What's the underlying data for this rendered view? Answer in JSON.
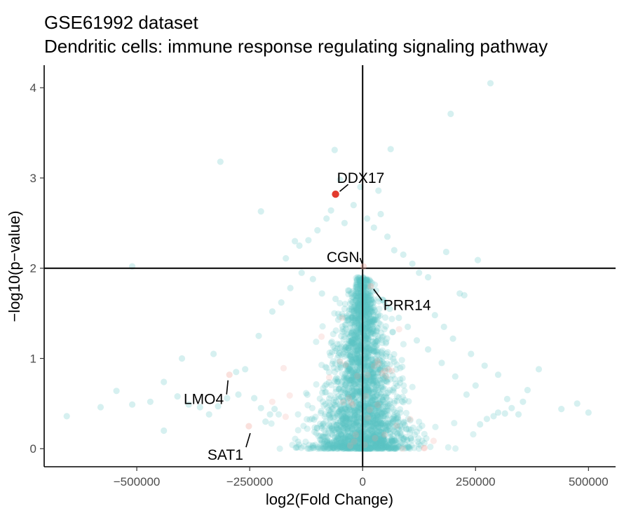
{
  "chart_data": {
    "type": "scatter",
    "title": "GSE61992 dataset",
    "subtitle": "Dendritic cells: immune response regulating signaling pathway",
    "xlabel": "log2(Fold Change)",
    "ylabel": "−log10(p−value)",
    "xlim": [
      -705000,
      560000
    ],
    "ylim": [
      -0.2,
      4.25
    ],
    "x_ticks": [
      -500000,
      -250000,
      0,
      250000,
      500000
    ],
    "x_tick_labels": [
      "−500000",
      "−250000",
      "0",
      "250000",
      "500000"
    ],
    "y_ticks": [
      0,
      1,
      2,
      3,
      4
    ],
    "y_tick_labels": [
      "0",
      "1",
      "2",
      "3",
      "4"
    ],
    "reference_lines": {
      "vertical_x": 0,
      "horizontal_y": 2
    },
    "grid": false,
    "colors": {
      "background_points": "#5bc4c4",
      "highlight": "#e23b2e",
      "faint_red": "#f2a69a",
      "axis": "#000000"
    },
    "highlighted_points": [
      {
        "label": "DDX17",
        "x": -60000,
        "y": 2.82
      },
      {
        "label": "CGN",
        "x": 2000,
        "y": 2.02
      },
      {
        "label": "PRR14",
        "x": 18000,
        "y": 1.8
      },
      {
        "label": "LMO4",
        "x": -295000,
        "y": 0.82
      },
      {
        "label": "SAT1",
        "x": -252000,
        "y": 0.25
      }
    ],
    "points": [
      [
        283000,
        4.05
      ],
      [
        195000,
        3.71
      ],
      [
        -315000,
        3.18
      ],
      [
        -62000,
        3.31
      ],
      [
        62000,
        3.32
      ],
      [
        -225000,
        2.63
      ],
      [
        -50000,
        2.98
      ],
      [
        35000,
        2.86
      ],
      [
        185000,
        2.18
      ],
      [
        255000,
        2.09
      ],
      [
        -510000,
        2.02
      ],
      [
        -170000,
        2.11
      ],
      [
        -150000,
        2.3
      ],
      [
        -140000,
        2.25
      ],
      [
        -120000,
        2.31
      ],
      [
        -100000,
        2.42
      ],
      [
        -80000,
        2.55
      ],
      [
        -70000,
        2.64
      ],
      [
        -40000,
        2.5
      ],
      [
        -20000,
        2.7
      ],
      [
        -5000,
        2.9
      ],
      [
        10000,
        2.55
      ],
      [
        25000,
        2.45
      ],
      [
        40000,
        2.6
      ],
      [
        55000,
        2.35
      ],
      [
        70000,
        2.2
      ],
      [
        90000,
        2.15
      ],
      [
        110000,
        2.05
      ],
      [
        125000,
        1.95
      ],
      [
        145000,
        1.9
      ],
      [
        215000,
        1.72
      ],
      [
        225000,
        1.7
      ],
      [
        -400000,
        1.0
      ],
      [
        -330000,
        1.05
      ],
      [
        -260000,
        0.88
      ],
      [
        -280000,
        0.85
      ],
      [
        -230000,
        1.25
      ],
      [
        -200000,
        1.52
      ],
      [
        -180000,
        1.62
      ],
      [
        -160000,
        1.78
      ],
      [
        -135000,
        1.95
      ],
      [
        -110000,
        1.88
      ],
      [
        -90000,
        1.72
      ],
      [
        -60000,
        1.66
      ],
      [
        -30000,
        1.75
      ],
      [
        160000,
        1.48
      ],
      [
        180000,
        1.35
      ],
      [
        200000,
        1.22
      ],
      [
        240000,
        1.05
      ],
      [
        270000,
        0.92
      ],
      [
        300000,
        0.82
      ],
      [
        330000,
        0.45
      ],
      [
        390000,
        0.88
      ],
      [
        440000,
        0.44
      ],
      [
        475000,
        0.5
      ],
      [
        500000,
        0.4
      ],
      [
        -440000,
        0.2
      ],
      [
        -655000,
        0.36
      ],
      [
        -580000,
        0.46
      ],
      [
        -545000,
        0.64
      ],
      [
        -510000,
        0.49
      ],
      [
        -470000,
        0.52
      ],
      [
        -440000,
        0.74
      ],
      [
        -410000,
        0.58
      ],
      [
        -385000,
        0.49
      ],
      [
        -360000,
        0.46
      ],
      [
        -340000,
        0.38
      ],
      [
        -320000,
        0.47
      ],
      [
        -300000,
        0.56
      ],
      [
        -275000,
        0.6
      ],
      [
        -240000,
        0.56
      ],
      [
        -225000,
        0.45
      ],
      [
        -215000,
        0.3
      ],
      [
        -205000,
        0.38
      ],
      [
        -195000,
        0.44
      ],
      [
        260000,
        0.27
      ],
      [
        275000,
        0.33
      ],
      [
        290000,
        0.36
      ],
      [
        300000,
        0.4
      ],
      [
        315000,
        0.39
      ],
      [
        345000,
        0.38
      ],
      [
        355000,
        0.52
      ],
      [
        365000,
        0.65
      ],
      [
        320000,
        0.55
      ],
      [
        230000,
        0.6
      ],
      [
        250000,
        0.7
      ],
      [
        205000,
        0.8
      ],
      [
        175000,
        0.95
      ],
      [
        145000,
        1.1
      ],
      [
        120000,
        1.2
      ],
      [
        100000,
        1.35
      ],
      [
        80000,
        1.45
      ],
      [
        60000,
        1.55
      ],
      [
        45000,
        1.65
      ],
      [
        30000,
        1.75
      ]
    ],
    "dense_cluster": {
      "x_center": 0,
      "x_spread": 60000,
      "y_min": 0.0,
      "y_max": 1.9,
      "count": 2600
    }
  }
}
